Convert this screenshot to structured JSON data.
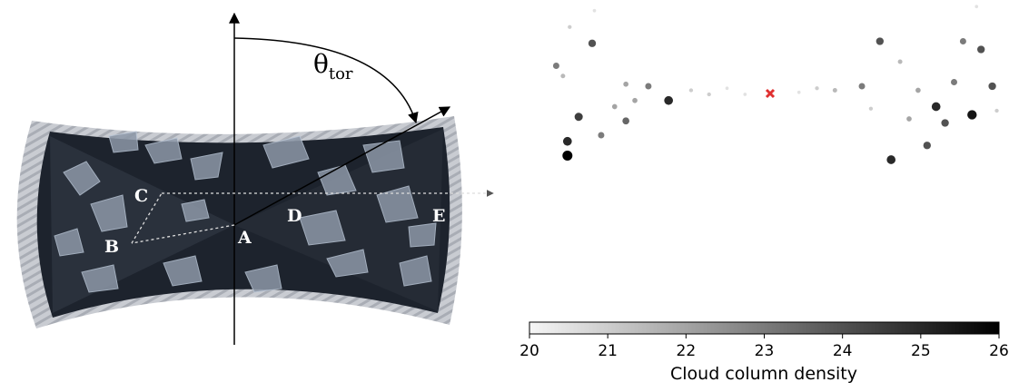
{
  "diagram": {
    "angle_symbol": "θ",
    "angle_subscript": "tor",
    "points": [
      "A",
      "B",
      "C",
      "D",
      "E"
    ]
  },
  "chart_data": {
    "type": "scatter",
    "xlim": [
      -10,
      10
    ],
    "ylim": [
      -4,
      4
    ],
    "x": [
      -8.1,
      -9.7,
      -9.4,
      -8.7,
      -9.2,
      -9.2,
      -7.7,
      -6.6,
      -7.1,
      -6.2,
      -5.6,
      -4.7,
      -6.6,
      -3.7,
      -2.9,
      -2.1,
      -1.3,
      5.6,
      4.7,
      7.2,
      8.8,
      9.7,
      8.0,
      9.2,
      8.4,
      6.8,
      5.2,
      6.0,
      7.6,
      3.9,
      2.7,
      1.9,
      1.1,
      6.4,
      4.3,
      9.9,
      9.0,
      -8.0,
      -9.1
    ],
    "y": [
      2.1,
      1.0,
      0.5,
      -1.5,
      -2.7,
      -3.4,
      -2.4,
      -1.7,
      -1.0,
      -0.7,
      0.0,
      -0.7,
      0.1,
      -0.2,
      -0.4,
      -0.1,
      -0.4,
      1.2,
      2.2,
      -1.0,
      -1.4,
      0.0,
      0.2,
      1.8,
      2.2,
      -2.9,
      -3.6,
      -1.6,
      -1.8,
      0.0,
      -0.2,
      -0.1,
      -0.3,
      -0.2,
      -1.1,
      -1.2,
      3.9,
      3.7,
      2.9
    ],
    "values": [
      24,
      23,
      21.5,
      24.5,
      25,
      26,
      23,
      23.5,
      22,
      22,
      23,
      25,
      22,
      21,
      21,
      20.5,
      20.5,
      21.5,
      24,
      25,
      25.5,
      24,
      23,
      24,
      23,
      24,
      25,
      22,
      24,
      23,
      21.5,
      21,
      20.5,
      22,
      21,
      21,
      20.5,
      20.5,
      21
    ],
    "clim": [
      20,
      26
    ],
    "cticks": [
      20,
      21,
      22,
      23,
      24,
      25,
      26
    ],
    "colorbar_label": "Cloud column density"
  }
}
